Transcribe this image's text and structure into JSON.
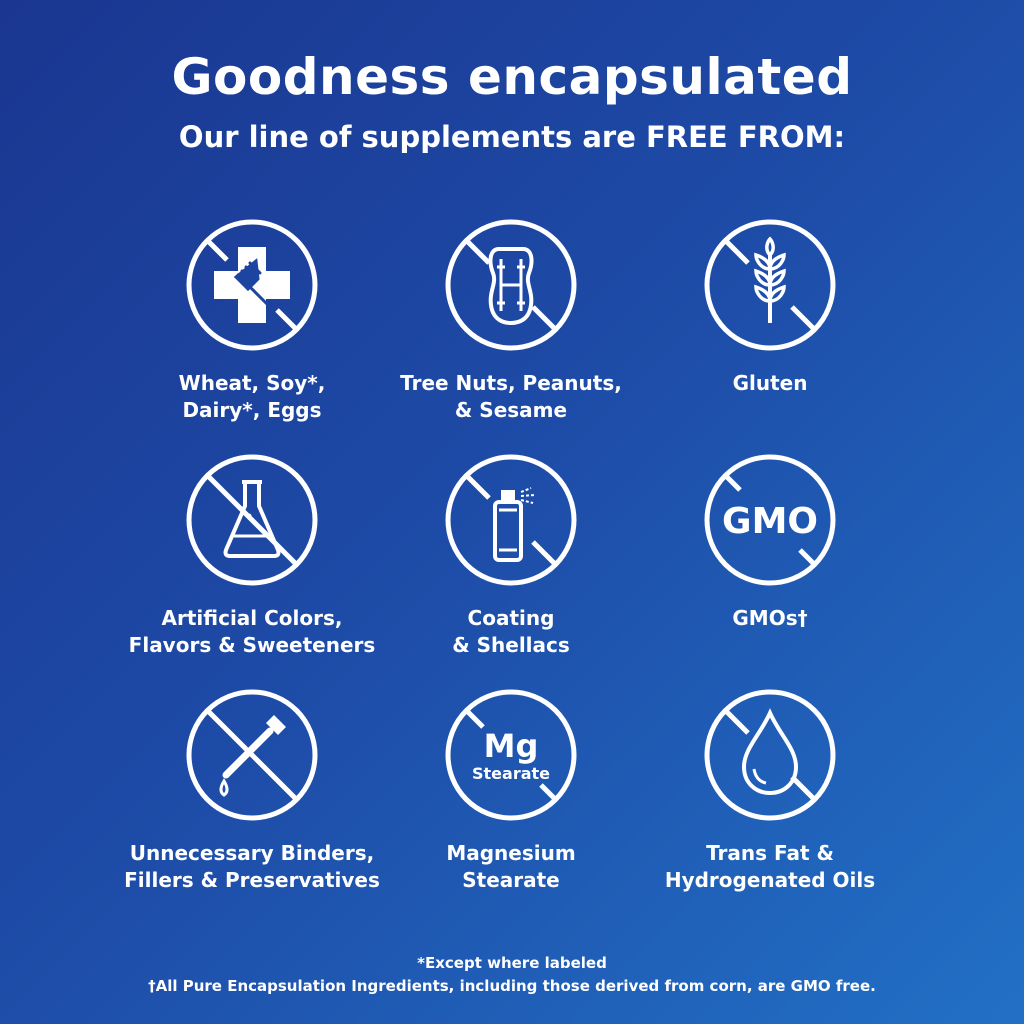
{
  "title": "Goodness encapsulated",
  "subtitle": "Our line of supplements are FREE FROM:",
  "items": [
    {
      "icon": "allergen-cross-fork-icon",
      "label": "Wheat, Soy*,\nDairy*, Eggs"
    },
    {
      "icon": "peanut-icon",
      "label": "Tree Nuts, Peanuts,\n& Sesame"
    },
    {
      "icon": "wheat-icon",
      "label": "Gluten"
    },
    {
      "icon": "flask-icon",
      "label": "Artificial Colors,\nFlavors & Sweeteners"
    },
    {
      "icon": "spray-bottle-icon",
      "label": "Coating\n& Shellacs"
    },
    {
      "icon": "gmo-icon",
      "label": "GMOs†",
      "icon_text": "GMO"
    },
    {
      "icon": "dropper-icon",
      "label": "Unnecessary Binders,\nFillers & Preservatives"
    },
    {
      "icon": "mg-stearate-icon",
      "label": "Magnesium\nStearate",
      "icon_text": "Mg",
      "icon_subtext": "Stearate"
    },
    {
      "icon": "oil-drop-icon",
      "label": "Trans Fat &\nHydrogenated Oils"
    }
  ],
  "footnotes": [
    "*Except where labeled",
    "†All Pure Encapsulation Ingredients, including those derived from corn, are GMO free."
  ],
  "colors": {
    "background_start": "#1a3690",
    "background_end": "#2270c6",
    "foreground": "#ffffff"
  }
}
